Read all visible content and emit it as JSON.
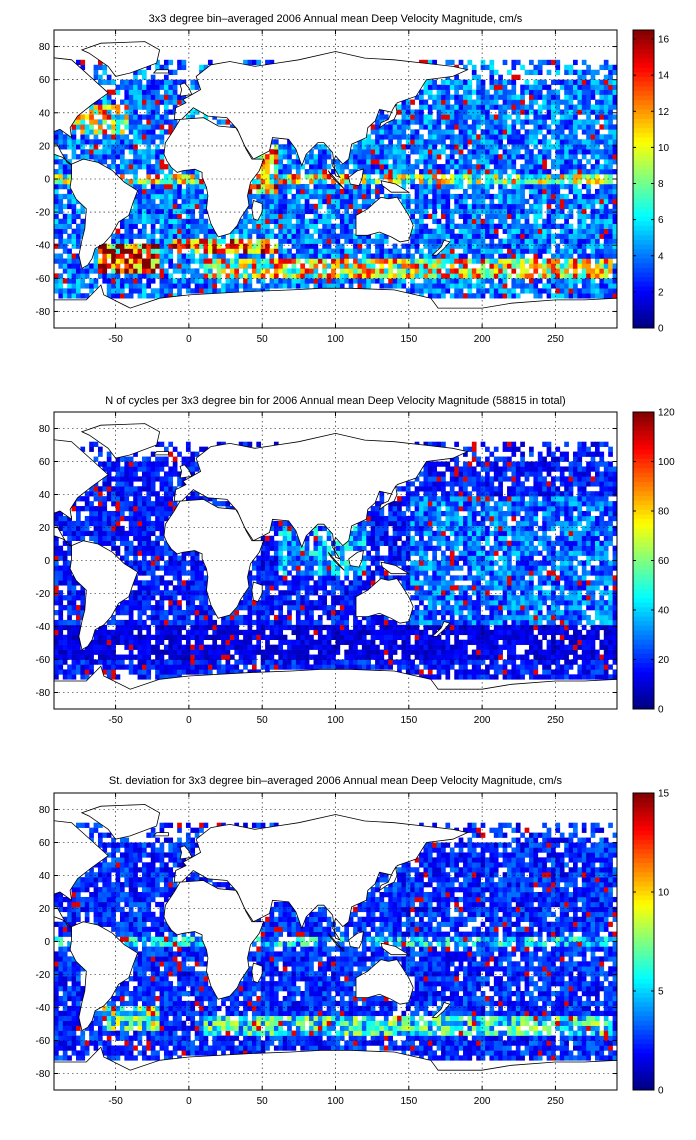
{
  "chart_data": [
    {
      "type": "heatmap",
      "title": "3x3 degree bin–averaged 2006 Annual mean Deep Velocity Magnitude, cm/s",
      "xlabel": "",
      "ylabel": "",
      "xlim": [
        -92,
        292
      ],
      "ylim": [
        -90,
        90
      ],
      "xticks": [
        -50,
        0,
        50,
        100,
        150,
        200,
        250
      ],
      "yticks": [
        -80,
        -60,
        -40,
        -20,
        0,
        20,
        40,
        60,
        80
      ],
      "colorbar": {
        "min": 0,
        "max": 16.5,
        "ticks": [
          0,
          2,
          4,
          6,
          8,
          10,
          12,
          14,
          16
        ]
      },
      "colormap": "jet",
      "grid": true,
      "bin_size_deg": 3,
      "regions": [
        {
          "lon": [
            -62,
            -20
          ],
          "lat": [
            -58,
            -38
          ],
          "value": 14
        },
        {
          "lon": [
            -10,
            60
          ],
          "lat": [
            -46,
            -36
          ],
          "value": 12
        },
        {
          "lon": [
            10,
            290
          ],
          "lat": [
            -60,
            -47
          ],
          "value": 10
        },
        {
          "lon": [
            -92,
            292
          ],
          "lat": [
            -4,
            4
          ],
          "value": 9
        },
        {
          "lon": [
            35,
            60
          ],
          "lat": [
            -10,
            20
          ],
          "value": 11
        },
        {
          "lon": [
            -80,
            -40
          ],
          "lat": [
            28,
            44
          ],
          "value": 10
        },
        {
          "lon": [
            -92,
            292
          ],
          "lat": [
            -90,
            90
          ],
          "value": 4
        }
      ]
    },
    {
      "type": "heatmap",
      "title": "N of cycles per 3x3 degree bin for 2006 Annual mean Deep Velocity Magnitude (58815 in total)",
      "xlabel": "",
      "ylabel": "",
      "xlim": [
        -92,
        292
      ],
      "ylim": [
        -90,
        90
      ],
      "xticks": [
        -50,
        0,
        50,
        100,
        150,
        200,
        250
      ],
      "yticks": [
        -80,
        -60,
        -40,
        -20,
        0,
        20,
        40,
        60,
        80
      ],
      "colorbar": {
        "min": 0,
        "max": 120,
        "ticks": [
          0,
          20,
          40,
          60,
          80,
          100,
          120
        ]
      },
      "colormap": "jet",
      "grid": true,
      "bin_size_deg": 3,
      "regions": [
        {
          "lon": [
            -92,
            292
          ],
          "lat": [
            -60,
            -40
          ],
          "value": 12
        },
        {
          "lon": [
            60,
            120
          ],
          "lat": [
            -10,
            25
          ],
          "value": 35
        },
        {
          "lon": [
            150,
            290
          ],
          "lat": [
            -45,
            40
          ],
          "value": 28
        },
        {
          "lon": [
            -92,
            292
          ],
          "lat": [
            -90,
            90
          ],
          "value": 18
        }
      ]
    },
    {
      "type": "heatmap",
      "title": "St. deviation for 3x3 degree bin–averaged 2006 Annual mean Deep Velocity Magnitude, cm/s",
      "xlabel": "",
      "ylabel": "",
      "xlim": [
        -92,
        292
      ],
      "ylim": [
        -90,
        90
      ],
      "xticks": [
        -50,
        0,
        50,
        100,
        150,
        200,
        250
      ],
      "yticks": [
        -80,
        -60,
        -40,
        -20,
        0,
        20,
        40,
        60,
        80
      ],
      "colorbar": {
        "min": 0,
        "max": 15,
        "ticks": [
          0,
          5,
          10,
          15
        ]
      },
      "colormap": "jet",
      "grid": true,
      "bin_size_deg": 3,
      "regions": [
        {
          "lon": [
            -60,
            -20
          ],
          "lat": [
            -55,
            -38
          ],
          "value": 7
        },
        {
          "lon": [
            10,
            290
          ],
          "lat": [
            -58,
            -44
          ],
          "value": 6
        },
        {
          "lon": [
            -92,
            292
          ],
          "lat": [
            -3,
            3
          ],
          "value": 5
        },
        {
          "lon": [
            -92,
            292
          ],
          "lat": [
            -90,
            90
          ],
          "value": 2.5
        }
      ]
    }
  ]
}
